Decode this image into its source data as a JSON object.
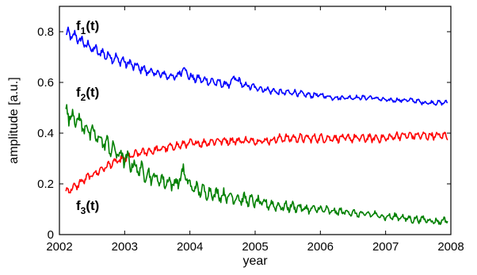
{
  "chart_data": {
    "type": "line",
    "title": "",
    "xlabel": "year",
    "ylabel": "amplitude [a.u.]",
    "xlim": [
      2002,
      2008
    ],
    "ylim": [
      0,
      0.9
    ],
    "xticks": [
      "2002",
      "2003",
      "2004",
      "2005",
      "2006",
      "2007",
      "2008"
    ],
    "yticks": [
      "0",
      "0.2",
      "0.4",
      "0.6",
      "0.8"
    ],
    "grid": false,
    "legend": "none",
    "annotations": [
      {
        "id": "f1",
        "base": "f",
        "sub": "1",
        "tail": "(t)"
      },
      {
        "id": "f2",
        "base": "f",
        "sub": "2",
        "tail": "(t)"
      },
      {
        "id": "f3",
        "base": "f",
        "sub": "3",
        "tail": "(t)"
      }
    ],
    "series": [
      {
        "color": "#0000ff",
        "x": [
          2002.1,
          2002.25,
          2002.4,
          2002.6,
          2002.8,
          2003.0,
          2003.2,
          2003.4,
          2003.6,
          2003.8,
          2003.9,
          2004.0,
          2004.2,
          2004.4,
          2004.6,
          2004.7,
          2004.8,
          2005.0,
          2005.2,
          2005.4,
          2005.6,
          2005.8,
          2006.0,
          2006.2,
          2006.4,
          2006.6,
          2006.8,
          2007.0,
          2007.2,
          2007.4,
          2007.6,
          2007.8,
          2007.95
        ],
        "y": [
          0.79,
          0.78,
          0.75,
          0.72,
          0.7,
          0.68,
          0.66,
          0.64,
          0.63,
          0.62,
          0.66,
          0.62,
          0.61,
          0.6,
          0.59,
          0.62,
          0.59,
          0.58,
          0.57,
          0.56,
          0.56,
          0.55,
          0.55,
          0.54,
          0.54,
          0.54,
          0.54,
          0.53,
          0.53,
          0.53,
          0.52,
          0.52,
          0.52
        ]
      },
      {
        "color": "#ff0000",
        "x": [
          2002.1,
          2002.25,
          2002.4,
          2002.6,
          2002.8,
          2003.0,
          2003.2,
          2003.4,
          2003.6,
          2003.8,
          2004.0,
          2004.2,
          2004.4,
          2004.6,
          2004.8,
          2005.0,
          2005.2,
          2005.4,
          2005.6,
          2005.8,
          2006.0,
          2006.2,
          2006.4,
          2006.6,
          2006.8,
          2007.0,
          2007.2,
          2007.4,
          2007.6,
          2007.8,
          2007.95
        ],
        "y": [
          0.17,
          0.19,
          0.22,
          0.25,
          0.28,
          0.3,
          0.32,
          0.33,
          0.34,
          0.35,
          0.36,
          0.36,
          0.37,
          0.37,
          0.37,
          0.37,
          0.37,
          0.38,
          0.38,
          0.38,
          0.38,
          0.38,
          0.38,
          0.38,
          0.38,
          0.38,
          0.39,
          0.39,
          0.39,
          0.39,
          0.39
        ]
      },
      {
        "color": "#008000",
        "x": [
          2002.1,
          2002.25,
          2002.4,
          2002.6,
          2002.8,
          2003.0,
          2003.2,
          2003.4,
          2003.6,
          2003.8,
          2003.9,
          2004.0,
          2004.2,
          2004.4,
          2004.6,
          2004.8,
          2005.0,
          2005.2,
          2005.4,
          2005.6,
          2005.8,
          2006.0,
          2006.2,
          2006.4,
          2006.6,
          2006.8,
          2007.0,
          2007.2,
          2007.4,
          2007.6,
          2007.8,
          2007.95
        ],
        "y": [
          0.48,
          0.46,
          0.42,
          0.38,
          0.34,
          0.3,
          0.26,
          0.23,
          0.21,
          0.2,
          0.25,
          0.19,
          0.17,
          0.16,
          0.15,
          0.14,
          0.13,
          0.12,
          0.11,
          0.11,
          0.1,
          0.1,
          0.09,
          0.09,
          0.08,
          0.08,
          0.07,
          0.07,
          0.06,
          0.06,
          0.05,
          0.06
        ]
      }
    ]
  }
}
